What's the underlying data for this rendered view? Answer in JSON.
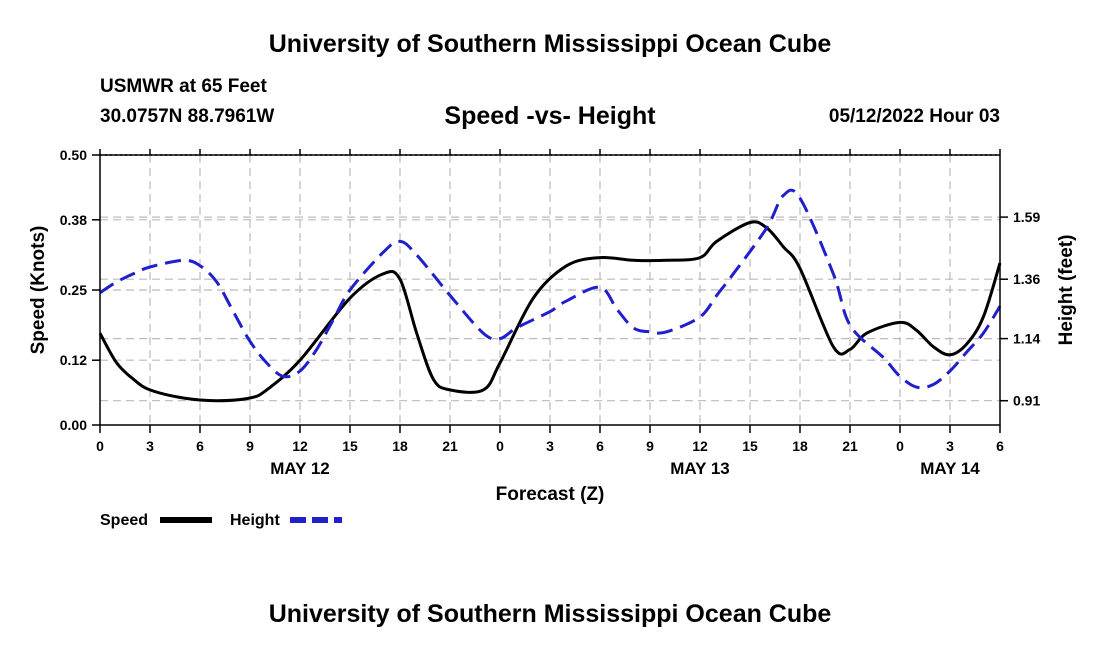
{
  "header": {
    "title": "University of Southern Mississippi Ocean Cube",
    "station": "USMWR at 65 Feet",
    "coords": "30.0757N  88.7961W",
    "chart_title": "Speed -vs- Height",
    "datetime": "05/12/2022 Hour 03"
  },
  "footer": {
    "title": "University of Southern Mississippi Ocean Cube"
  },
  "colors": {
    "speed": "#000000",
    "height": "#1f1fcc",
    "grid": "#bbbbbb"
  },
  "chart_data": {
    "type": "line",
    "title": "Speed -vs- Height",
    "xlabel": "Forecast (Z)",
    "ylabel": "Speed (Knots)",
    "y2label": "Height (feet)",
    "x_range": [
      0,
      54
    ],
    "x_ticks": [
      0,
      3,
      6,
      9,
      12,
      15,
      18,
      21,
      24,
      27,
      30,
      33,
      36,
      39,
      42,
      45,
      48,
      51,
      54
    ],
    "x_tick_labels": [
      "0",
      "3",
      "6",
      "9",
      "12",
      "15",
      "18",
      "21",
      "0",
      "3",
      "6",
      "9",
      "12",
      "15",
      "18",
      "21",
      "0",
      "3",
      "6"
    ],
    "day_labels": [
      {
        "x": 12,
        "label": "MAY 12"
      },
      {
        "x": 36,
        "label": "MAY 13"
      },
      {
        "x": 51,
        "label": "MAY 14"
      }
    ],
    "ylim": [
      0,
      0.5
    ],
    "y_ticks": [
      0,
      0.12,
      0.25,
      0.38,
      0.5
    ],
    "y_tick_labels": [
      "0.00",
      "0.12",
      "0.25",
      "0.38",
      "0.50"
    ],
    "y2lim": [
      0.82,
      1.82
    ],
    "y2_ticks": [
      0.91,
      1.14,
      1.36,
      1.59
    ],
    "y2_tick_labels": [
      "0.91",
      "1.14",
      "1.36",
      "1.59"
    ],
    "series": [
      {
        "name": "Speed",
        "axis": "left",
        "style": "solid",
        "x": [
          0,
          1,
          2,
          3,
          5,
          7,
          9,
          10,
          12,
          15,
          17,
          18,
          19,
          20,
          21,
          23,
          24,
          26,
          28,
          30,
          32,
          34,
          36,
          37,
          39,
          40,
          41,
          42,
          44,
          45,
          46,
          48,
          49,
          50,
          51,
          52,
          53,
          54
        ],
        "values": [
          0.17,
          0.115,
          0.085,
          0.065,
          0.05,
          0.045,
          0.05,
          0.065,
          0.12,
          0.235,
          0.28,
          0.27,
          0.17,
          0.085,
          0.065,
          0.065,
          0.115,
          0.235,
          0.295,
          0.31,
          0.305,
          0.305,
          0.31,
          0.34,
          0.375,
          0.365,
          0.33,
          0.29,
          0.145,
          0.14,
          0.17,
          0.19,
          0.175,
          0.145,
          0.13,
          0.15,
          0.2,
          0.3
        ]
      },
      {
        "name": "Height",
        "axis": "right",
        "style": "dashed",
        "x": [
          0,
          1,
          2,
          3,
          5,
          6,
          7,
          8,
          9,
          10,
          11,
          12,
          13,
          14,
          15,
          17,
          18,
          19,
          21,
          23,
          24,
          25,
          27,
          28,
          30,
          31,
          32,
          33,
          34,
          36,
          37,
          38,
          40,
          41,
          42,
          44,
          45,
          47,
          48,
          49,
          50,
          51,
          52,
          53,
          54
        ],
        "values": [
          1.31,
          1.35,
          1.38,
          1.405,
          1.43,
          1.41,
          1.35,
          1.24,
          1.13,
          1.05,
          1.0,
          1.02,
          1.1,
          1.21,
          1.32,
          1.46,
          1.5,
          1.45,
          1.3,
          1.16,
          1.14,
          1.18,
          1.24,
          1.28,
          1.33,
          1.25,
          1.18,
          1.165,
          1.165,
          1.22,
          1.3,
          1.38,
          1.55,
          1.67,
          1.66,
          1.38,
          1.19,
          1.07,
          1.0,
          0.96,
          0.97,
          1.02,
          1.09,
          1.16,
          1.26
        ]
      }
    ],
    "legend": [
      {
        "name": "Speed",
        "label": "Speed"
      },
      {
        "name": "Height",
        "label": "Height"
      }
    ],
    "legend_placement": "bottom-left",
    "grid": true
  }
}
